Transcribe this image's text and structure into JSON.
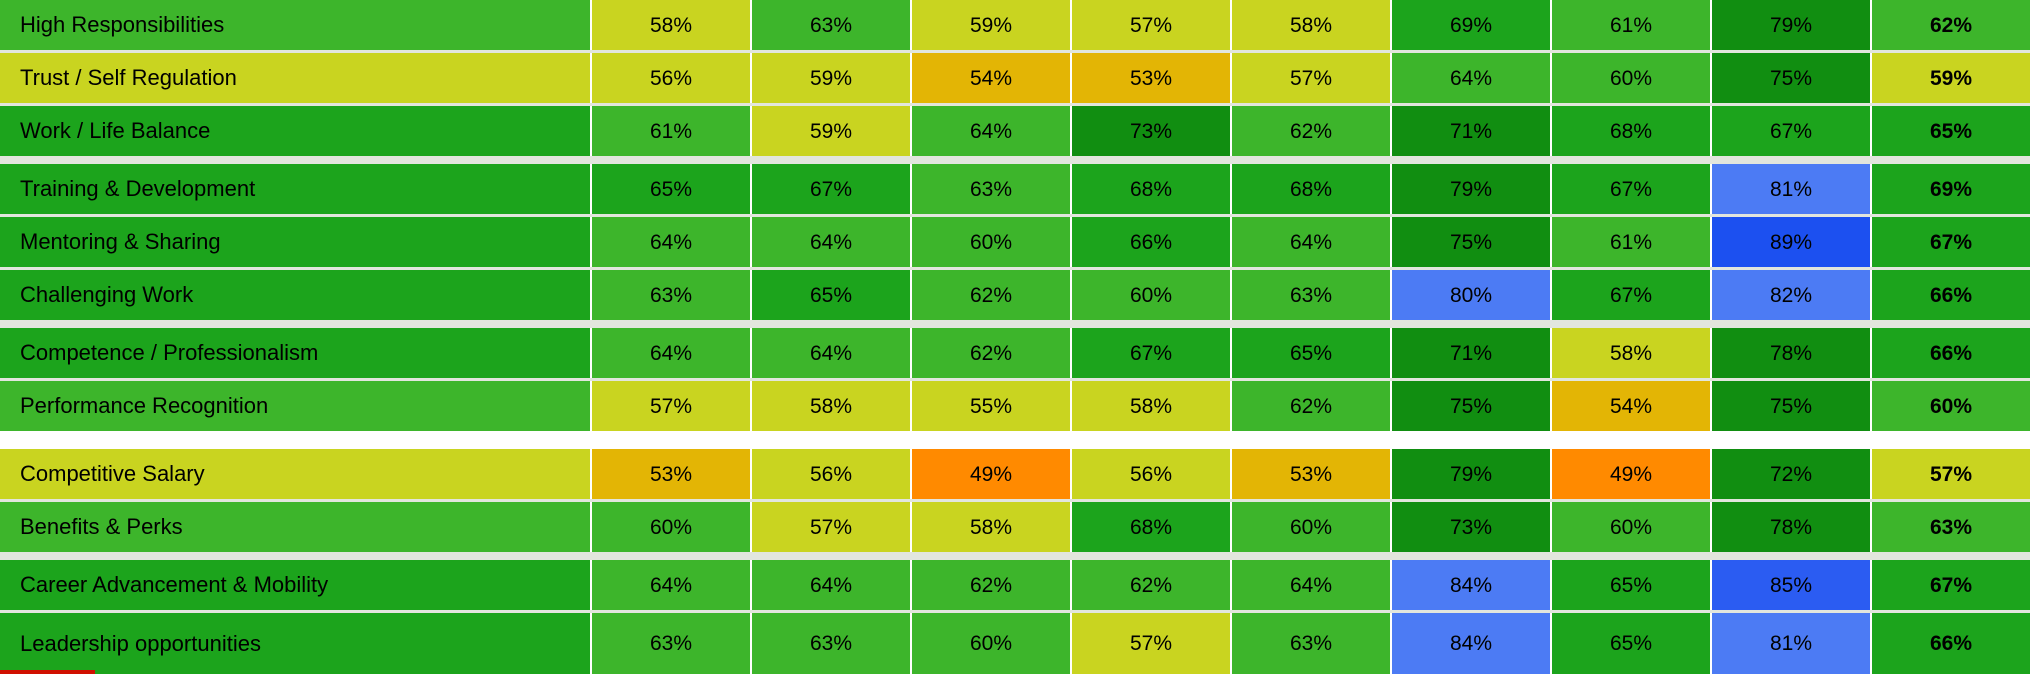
{
  "unit": "%",
  "colors": {
    "orange_lt50": "#FF8A00",
    "amber_50_54": "#E3B505",
    "yellowgreen_55_59": "#C9D420",
    "midgreen_60_64": "#3DB52B",
    "green_65_69": "#1CA41C",
    "darkgreen_70_79": "#118E11",
    "blue_80_84": "#4C7BF4",
    "blue_85_88": "#2B5CF2",
    "blue_89_plus": "#1C50F0",
    "cutoff_red": "#D01000",
    "separator": "#E2E6DD",
    "big_gap": "#FFFFFF"
  },
  "chart_data": {
    "type": "heatmap",
    "value_unit": "%",
    "column_headers_visible": false,
    "columns_per_row": 9,
    "last_column_is_bold_overall": true,
    "color_scale_note": "<50 orange, 50-54 amber, 55-59 yellow-green, 60-64 mid green, 65-69 green, 70-79 dark green, 80-84 royal blue, 85-88 stronger blue, 89+ strongest blue; row label cell colored by overall value",
    "groups": [
      {
        "big_gap_before": false,
        "rows": [
          {
            "label": "High Responsibilities",
            "values": [
              58,
              63,
              59,
              57,
              58,
              69,
              61,
              79,
              62
            ]
          },
          {
            "label": "Trust / Self Regulation",
            "values": [
              56,
              59,
              54,
              53,
              57,
              64,
              60,
              75,
              59
            ]
          },
          {
            "label": "Work / Life Balance",
            "values": [
              61,
              59,
              64,
              73,
              62,
              71,
              68,
              67,
              65
            ]
          }
        ]
      },
      {
        "big_gap_before": false,
        "rows": [
          {
            "label": "Training & Development",
            "values": [
              65,
              67,
              63,
              68,
              68,
              79,
              67,
              81,
              69
            ]
          },
          {
            "label": "Mentoring & Sharing",
            "values": [
              64,
              64,
              60,
              66,
              64,
              75,
              61,
              89,
              67
            ]
          },
          {
            "label": "Challenging Work",
            "values": [
              63,
              65,
              62,
              60,
              63,
              80,
              67,
              82,
              66
            ]
          }
        ]
      },
      {
        "big_gap_before": false,
        "rows": [
          {
            "label": "Competence / Professionalism",
            "values": [
              64,
              64,
              62,
              67,
              65,
              71,
              58,
              78,
              66
            ]
          },
          {
            "label": "Performance Recognition",
            "values": [
              57,
              58,
              55,
              58,
              62,
              75,
              54,
              75,
              60
            ]
          }
        ]
      },
      {
        "big_gap_before": true,
        "rows": [
          {
            "label": "Competitive Salary",
            "values": [
              53,
              56,
              49,
              56,
              53,
              79,
              49,
              72,
              57
            ]
          },
          {
            "label": "Benefits & Perks",
            "values": [
              60,
              57,
              58,
              68,
              60,
              73,
              60,
              78,
              63
            ]
          }
        ]
      },
      {
        "big_gap_before": false,
        "rows": [
          {
            "label": "Career Advancement & Mobility",
            "values": [
              64,
              64,
              62,
              62,
              64,
              84,
              65,
              85,
              67
            ]
          },
          {
            "label": "Leadership opportunities",
            "values": [
              63,
              63,
              60,
              57,
              63,
              84,
              65,
              81,
              66
            ]
          }
        ]
      }
    ]
  }
}
